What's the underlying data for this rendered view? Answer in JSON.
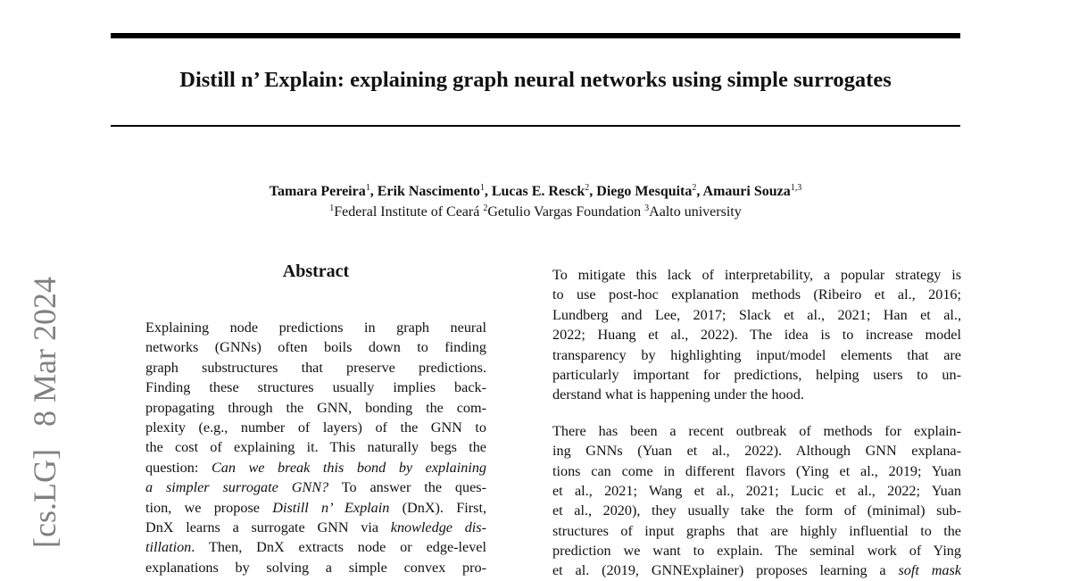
{
  "title": "Distill n’ Explain: explaining graph neural networks using simple surrogates",
  "authors": [
    {
      "name": "Tamara Pereira",
      "aff": "1"
    },
    {
      "name": "Erik Nascimento",
      "aff": "1"
    },
    {
      "name": "Lucas E. Resck",
      "aff": "2"
    },
    {
      "name": "Diego Mesquita",
      "aff": "2"
    },
    {
      "name": "Amauri Souza",
      "aff": "1,3"
    }
  ],
  "affiliations": [
    {
      "num": "1",
      "name": "Federal Institute of Ceará"
    },
    {
      "num": "2",
      "name": "Getulio Vargas Foundation"
    },
    {
      "num": "3",
      "name": "Aalto university"
    }
  ],
  "arxiv_stamp": {
    "category": "[cs.LG]",
    "date": "8 Mar 2024"
  },
  "abstract_heading": "Abstract",
  "left_lines": [
    [
      {
        "t": "Explaining node predictions in graph neural"
      }
    ],
    [
      {
        "t": "networks (GNNs) often boils down to finding"
      }
    ],
    [
      {
        "t": "graph substructures that preserve predictions."
      }
    ],
    [
      {
        "t": "Finding these structures usually implies back-"
      }
    ],
    [
      {
        "t": "propagating through the GNN, bonding the com-"
      }
    ],
    [
      {
        "t": "plexity (e.g., number of layers) of the GNN to"
      }
    ],
    [
      {
        "t": "the cost of explaining it. This naturally begs the"
      }
    ],
    [
      {
        "t": "question: "
      },
      {
        "t": "Can we break this bond by explaining",
        "i": true
      }
    ],
    [
      {
        "t": "a simpler surrogate GNN?",
        "i": true
      },
      {
        "t": " To answer the ques-"
      }
    ],
    [
      {
        "t": "tion, we propose "
      },
      {
        "t": "Distill n’ Explain",
        "i": true
      },
      {
        "t": " (DnX). First,"
      }
    ],
    [
      {
        "t": "DnX learns a surrogate GNN via "
      },
      {
        "t": "knowledge dis-",
        "i": true
      }
    ],
    [
      {
        "t": "tillation",
        "i": true
      },
      {
        "t": ". Then, DnX extracts node or edge-level"
      }
    ],
    [
      {
        "t": "explanations by solving a simple convex pro-"
      }
    ]
  ],
  "right_paragraphs": [
    [
      [
        {
          "t": "To mitigate this lack of interpretability, a popular strategy is"
        }
      ],
      [
        {
          "t": "to use post-hoc explanation methods (Ribeiro et al., 2016;"
        }
      ],
      [
        {
          "t": "Lundberg and Lee, 2017; Slack et al., 2021; Han et al.,"
        }
      ],
      [
        {
          "t": "2022; Huang et al., 2022). The idea is to increase model"
        }
      ],
      [
        {
          "t": "transparency by highlighting input/model elements that are"
        }
      ],
      [
        {
          "t": "particularly important for predictions, helping users to un-"
        }
      ],
      [
        {
          "t": "derstand what is happening under the hood."
        }
      ]
    ],
    [
      [
        {
          "t": "There has been a recent outbreak of methods for explain-"
        }
      ],
      [
        {
          "t": "ing GNNs (Yuan et al., 2022). Although GNN explana-"
        }
      ],
      [
        {
          "t": "tions can come in different flavors (Ying et al., 2019; Yuan"
        }
      ],
      [
        {
          "t": "et al., 2021; Wang et al., 2021; Lucic et al., 2022; Yuan"
        }
      ],
      [
        {
          "t": "et al., 2020), they usually take the form of (minimal) sub-"
        }
      ],
      [
        {
          "t": "structures of input graphs that are highly influential to the"
        }
      ],
      [
        {
          "t": "prediction we want to explain. The seminal work of Ying"
        }
      ],
      [
        {
          "t": "et al. (2019, GNNExplainer) proposes learning a "
        },
        {
          "t": "soft mask",
          "i": true
        }
      ]
    ]
  ]
}
